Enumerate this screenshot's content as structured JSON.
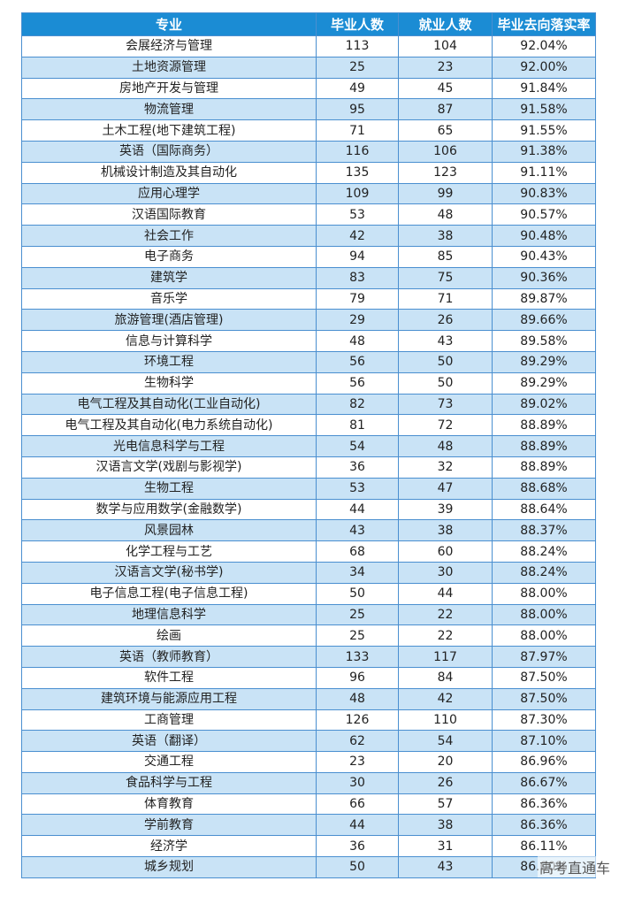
{
  "table": {
    "headers": [
      "专业",
      "毕业人数",
      "就业人数",
      "毕业去向落实率"
    ],
    "rows": [
      [
        "会展经济与管理",
        "113",
        "104",
        "92.04%"
      ],
      [
        "土地资源管理",
        "25",
        "23",
        "92.00%"
      ],
      [
        "房地产开发与管理",
        "49",
        "45",
        "91.84%"
      ],
      [
        "物流管理",
        "95",
        "87",
        "91.58%"
      ],
      [
        "土木工程(地下建筑工程)",
        "71",
        "65",
        "91.55%"
      ],
      [
        "英语（国际商务）",
        "116",
        "106",
        "91.38%"
      ],
      [
        "机械设计制造及其自动化",
        "135",
        "123",
        "91.11%"
      ],
      [
        "应用心理学",
        "109",
        "99",
        "90.83%"
      ],
      [
        "汉语国际教育",
        "53",
        "48",
        "90.57%"
      ],
      [
        "社会工作",
        "42",
        "38",
        "90.48%"
      ],
      [
        "电子商务",
        "94",
        "85",
        "90.43%"
      ],
      [
        "建筑学",
        "83",
        "75",
        "90.36%"
      ],
      [
        "音乐学",
        "79",
        "71",
        "89.87%"
      ],
      [
        "旅游管理(酒店管理)",
        "29",
        "26",
        "89.66%"
      ],
      [
        "信息与计算科学",
        "48",
        "43",
        "89.58%"
      ],
      [
        "环境工程",
        "56",
        "50",
        "89.29%"
      ],
      [
        "生物科学",
        "56",
        "50",
        "89.29%"
      ],
      [
        "电气工程及其自动化(工业自动化)",
        "82",
        "73",
        "89.02%"
      ],
      [
        "电气工程及其自动化(电力系统自动化)",
        "81",
        "72",
        "88.89%"
      ],
      [
        "光电信息科学与工程",
        "54",
        "48",
        "88.89%"
      ],
      [
        "汉语言文学(戏剧与影视学)",
        "36",
        "32",
        "88.89%"
      ],
      [
        "生物工程",
        "53",
        "47",
        "88.68%"
      ],
      [
        "数学与应用数学(金融数学)",
        "44",
        "39",
        "88.64%"
      ],
      [
        "风景园林",
        "43",
        "38",
        "88.37%"
      ],
      [
        "化学工程与工艺",
        "68",
        "60",
        "88.24%"
      ],
      [
        "汉语言文学(秘书学)",
        "34",
        "30",
        "88.24%"
      ],
      [
        "电子信息工程(电子信息工程)",
        "50",
        "44",
        "88.00%"
      ],
      [
        "地理信息科学",
        "25",
        "22",
        "88.00%"
      ],
      [
        "绘画",
        "25",
        "22",
        "88.00%"
      ],
      [
        "英语（教师教育）",
        "133",
        "117",
        "87.97%"
      ],
      [
        "软件工程",
        "96",
        "84",
        "87.50%"
      ],
      [
        "建筑环境与能源应用工程",
        "48",
        "42",
        "87.50%"
      ],
      [
        "工商管理",
        "126",
        "110",
        "87.30%"
      ],
      [
        "英语（翻译）",
        "62",
        "54",
        "87.10%"
      ],
      [
        "交通工程",
        "23",
        "20",
        "86.96%"
      ],
      [
        "食品科学与工程",
        "30",
        "26",
        "86.67%"
      ],
      [
        "体育教育",
        "66",
        "57",
        "86.36%"
      ],
      [
        "学前教育",
        "44",
        "38",
        "86.36%"
      ],
      [
        "经济学",
        "36",
        "31",
        "86.11%"
      ],
      [
        "城乡规划",
        "50",
        "43",
        "86.00%"
      ]
    ]
  },
  "watermark": "高考直通车",
  "colors": {
    "header_bg": "#1b8cd4",
    "row_alt_bg": "#c9e3f6",
    "border": "#4a8fd0"
  }
}
